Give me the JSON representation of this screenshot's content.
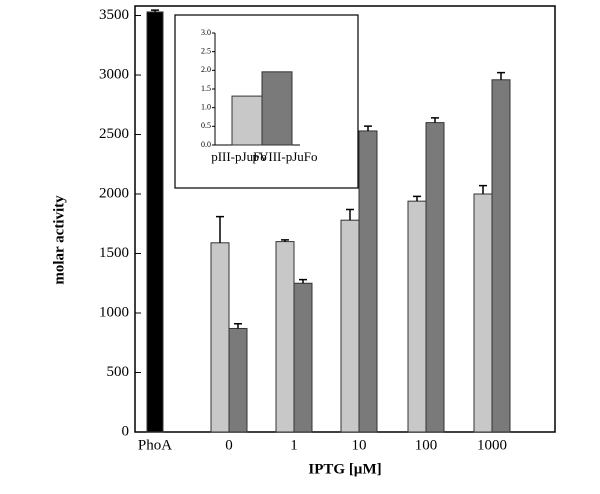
{
  "chart_data": [
    {
      "type": "bar",
      "x_label": "IPTG [µM]",
      "y_label": "molar activity",
      "categories": [
        "PhoA",
        "0",
        "1",
        "10",
        "100",
        "1000"
      ],
      "series": [
        {
          "color": "#000000",
          "values": [
            3530,
            null,
            null,
            null,
            null,
            null
          ],
          "errors": [
            15,
            null,
            null,
            null,
            null,
            null
          ]
        },
        {
          "color": "#c8c8c8",
          "values": [
            null,
            1590,
            1600,
            1780,
            1940,
            2000
          ],
          "errors": [
            null,
            220,
            15,
            90,
            40,
            70
          ]
        },
        {
          "color": "#7a7a7a",
          "values": [
            null,
            870,
            1250,
            2530,
            2600,
            2960
          ],
          "errors": [
            null,
            40,
            30,
            40,
            40,
            60
          ]
        }
      ],
      "ylim": [
        0,
        3580
      ],
      "yticks": [
        0,
        500,
        1000,
        1500,
        2000,
        2500,
        3000,
        3500
      ]
    },
    {
      "type": "bar",
      "categories": [
        "pIII-pJuFo",
        "pVIII-pJuFo"
      ],
      "values": [
        1.31,
        1.96
      ],
      "colors": [
        "#c8c8c8",
        "#7a7a7a"
      ],
      "ylim": [
        0,
        3
      ],
      "yticks": [
        {
          "value": 0,
          "label": "0.0"
        },
        {
          "value": 0.5,
          "label": "0.5"
        },
        {
          "value": 1,
          "label": "1.0"
        },
        {
          "value": 1.5,
          "label": "1.5"
        },
        {
          "value": 2,
          "label": "2.0"
        },
        {
          "value": 2.5,
          "label": "2.5"
        },
        {
          "value": 3,
          "label": "3.0"
        }
      ]
    }
  ]
}
